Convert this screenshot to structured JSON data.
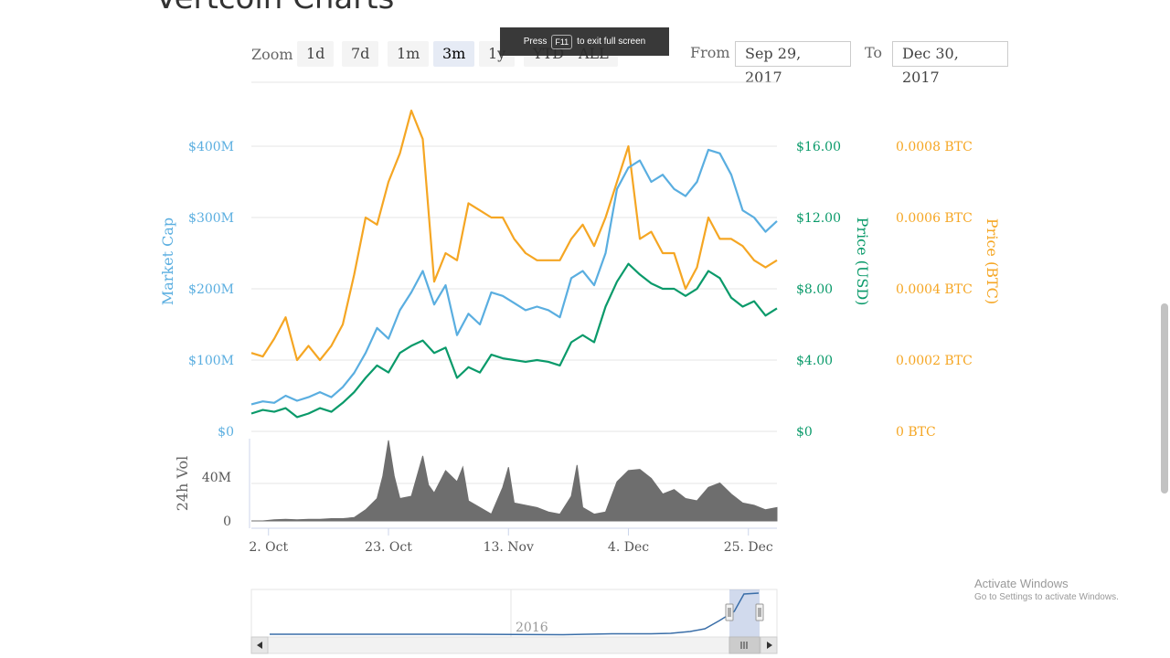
{
  "page": {
    "title": "Vertcoin Charts",
    "zoom_label": "Zoom",
    "zoom_buttons": [
      "1d",
      "7d",
      "1m",
      "3m",
      "1y",
      "YTD",
      "ALL"
    ],
    "zoom_active": "3m",
    "from_label": "From",
    "from_value": "Sep 29, 2017",
    "to_label": "To",
    "to_value": "Dec 30, 2017",
    "toast_press": "Press",
    "toast_key": "F11",
    "toast_rest": "to exit full screen",
    "watermark_line1": "Activate Windows",
    "watermark_line2": "Go to Settings to activate Windows."
  },
  "colors": {
    "market_cap": "#5aaee0",
    "price_usd": "#0a9a6a",
    "price_btc": "#f5a623",
    "volume": "#6e6e6e",
    "navigator": "#3a6ea8"
  },
  "chart_data": {
    "type": "line",
    "grid": true,
    "x_tick_labels": [
      "2. Oct",
      "23. Oct",
      "13. Nov",
      "4. Dec",
      "25. Dec"
    ],
    "x_ticks_day": [
      3,
      24,
      45,
      66,
      87
    ],
    "x_range_day": [
      0,
      92
    ],
    "left_axis": {
      "label": "Market Cap",
      "ticks": [
        "$0",
        "$100M",
        "$200M",
        "$300M",
        "$400M"
      ],
      "range": [
        0,
        400000000
      ]
    },
    "usd_axis": {
      "label": "Price (USD)",
      "ticks": [
        "$0",
        "$4.00",
        "$8.00",
        "$12.00",
        "$16.00"
      ],
      "range": [
        0,
        16
      ]
    },
    "btc_axis": {
      "label": "Price (BTC)",
      "ticks": [
        "0 BTC",
        "0.0002 BTC",
        "0.0004 BTC",
        "0.0006 BTC",
        "0.0008 BTC"
      ],
      "range": [
        0,
        0.0008
      ]
    },
    "vol_axis": {
      "label": "24h Vol",
      "ticks": [
        "0",
        "40M"
      ],
      "range": [
        0,
        80000000
      ]
    },
    "navigator_label": "2016",
    "series": [
      {
        "name": "Market Cap",
        "axis": "left",
        "x": [
          0,
          2,
          4,
          6,
          8,
          10,
          12,
          14,
          16,
          18,
          20,
          22,
          24,
          26,
          28,
          30,
          32,
          34,
          36,
          38,
          40,
          42,
          44,
          46,
          48,
          50,
          52,
          54,
          56,
          58,
          60,
          62,
          64,
          66,
          68,
          70,
          72,
          74,
          76,
          78,
          80,
          82,
          84,
          86,
          88,
          90,
          92
        ],
        "values": [
          38000000,
          42000000,
          40000000,
          50000000,
          43000000,
          48000000,
          55000000,
          48000000,
          62000000,
          82000000,
          110000000,
          145000000,
          130000000,
          170000000,
          195000000,
          225000000,
          178000000,
          205000000,
          135000000,
          165000000,
          150000000,
          195000000,
          190000000,
          180000000,
          170000000,
          175000000,
          170000000,
          160000000,
          215000000,
          225000000,
          205000000,
          250000000,
          340000000,
          370000000,
          380000000,
          350000000,
          360000000,
          340000000,
          330000000,
          350000000,
          395000000,
          390000000,
          360000000,
          310000000,
          300000000,
          280000000,
          295000000
        ]
      },
      {
        "name": "Price (USD)",
        "axis": "usd",
        "x": [
          0,
          2,
          4,
          6,
          8,
          10,
          12,
          14,
          16,
          18,
          20,
          22,
          24,
          26,
          28,
          30,
          32,
          34,
          36,
          38,
          40,
          42,
          44,
          46,
          48,
          50,
          52,
          54,
          56,
          58,
          60,
          62,
          64,
          66,
          68,
          70,
          72,
          74,
          76,
          78,
          80,
          82,
          84,
          86,
          88,
          90,
          92
        ],
        "values": [
          1.0,
          1.2,
          1.1,
          1.3,
          0.8,
          1.0,
          1.3,
          1.1,
          1.6,
          2.2,
          3.0,
          3.7,
          3.3,
          4.4,
          4.8,
          5.1,
          4.4,
          4.7,
          3.0,
          3.6,
          3.3,
          4.3,
          4.1,
          4.0,
          3.9,
          4.0,
          3.9,
          3.7,
          5.0,
          5.4,
          5.0,
          7.0,
          8.4,
          9.4,
          8.8,
          8.3,
          8.0,
          8.0,
          7.6,
          8.0,
          9.0,
          8.6,
          7.5,
          7.0,
          7.3,
          6.5,
          6.9
        ]
      },
      {
        "name": "Price (BTC)",
        "axis": "btc",
        "x": [
          0,
          2,
          4,
          6,
          8,
          10,
          12,
          14,
          16,
          18,
          20,
          22,
          24,
          26,
          28,
          30,
          32,
          34,
          36,
          38,
          40,
          42,
          44,
          46,
          48,
          50,
          52,
          54,
          56,
          58,
          60,
          62,
          64,
          66,
          68,
          70,
          72,
          74,
          76,
          78,
          80,
          82,
          84,
          86,
          88,
          90,
          92
        ],
        "values": [
          0.00022,
          0.00021,
          0.00026,
          0.00032,
          0.0002,
          0.00024,
          0.0002,
          0.00024,
          0.0003,
          0.00044,
          0.0006,
          0.00058,
          0.0007,
          0.00078,
          0.0009,
          0.00082,
          0.00042,
          0.0005,
          0.00048,
          0.00064,
          0.00062,
          0.0006,
          0.0006,
          0.00054,
          0.0005,
          0.00048,
          0.00048,
          0.00048,
          0.00054,
          0.00058,
          0.00052,
          0.0006,
          0.0007,
          0.0008,
          0.00054,
          0.00056,
          0.0005,
          0.0005,
          0.0004,
          0.00046,
          0.0006,
          0.00054,
          0.00054,
          0.00052,
          0.00048,
          0.00046,
          0.00048
        ]
      },
      {
        "name": "24h Vol",
        "axis": "vol",
        "x": [
          0,
          2,
          4,
          6,
          8,
          10,
          12,
          14,
          16,
          18,
          20,
          22,
          23,
          24,
          25,
          26,
          28,
          30,
          31,
          32,
          34,
          36,
          37,
          38,
          40,
          42,
          44,
          45,
          46,
          48,
          50,
          52,
          54,
          56,
          57,
          58,
          60,
          62,
          64,
          66,
          68,
          70,
          72,
          74,
          76,
          78,
          80,
          82,
          84,
          86,
          88,
          90,
          92
        ],
        "values": [
          0,
          0,
          1000000,
          1500000,
          1000000,
          1500000,
          1500000,
          2000000,
          2000000,
          3000000,
          10000000,
          20000000,
          40000000,
          72000000,
          40000000,
          20000000,
          22000000,
          58000000,
          32000000,
          25000000,
          45000000,
          35000000,
          48000000,
          18000000,
          12000000,
          6000000,
          30000000,
          48000000,
          16000000,
          14000000,
          12000000,
          8000000,
          6000000,
          22000000,
          50000000,
          12000000,
          6000000,
          8000000,
          35000000,
          45000000,
          46000000,
          38000000,
          24000000,
          28000000,
          20000000,
          18000000,
          30000000,
          34000000,
          24000000,
          16000000,
          14000000,
          10000000,
          12000000
        ]
      },
      {
        "name": "Navigator",
        "axis": "nav",
        "x": [
          0,
          20,
          40,
          60,
          70,
          78,
          82,
          86,
          89,
          92,
          95,
          97,
          100
        ],
        "values": [
          0.02,
          0.02,
          0.02,
          0.01,
          0.03,
          0.03,
          0.04,
          0.08,
          0.14,
          0.32,
          0.52,
          0.9,
          0.92
        ]
      }
    ]
  }
}
